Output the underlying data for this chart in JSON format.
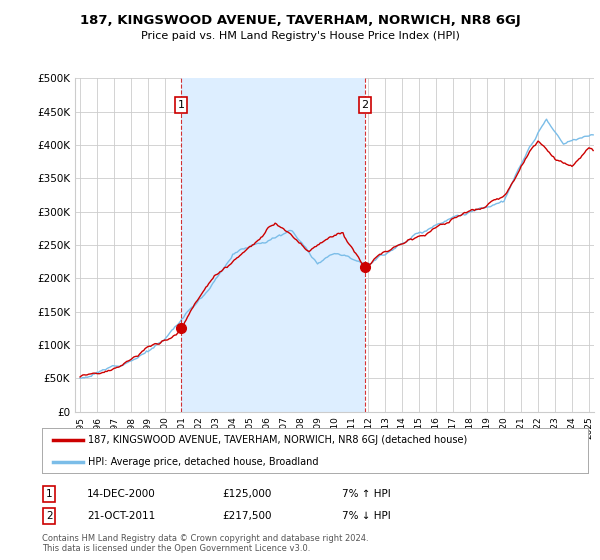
{
  "title": "187, KINGSWOOD AVENUE, TAVERHAM, NORWICH, NR8 6GJ",
  "subtitle": "Price paid vs. HM Land Registry's House Price Index (HPI)",
  "legend_line1": "187, KINGSWOOD AVENUE, TAVERHAM, NORWICH, NR8 6GJ (detached house)",
  "legend_line2": "HPI: Average price, detached house, Broadland",
  "annotation1_label": "1",
  "annotation1_date": "14-DEC-2000",
  "annotation1_price": "£125,000",
  "annotation1_hpi": "7% ↑ HPI",
  "annotation2_label": "2",
  "annotation2_date": "21-OCT-2011",
  "annotation2_price": "£217,500",
  "annotation2_hpi": "7% ↓ HPI",
  "footer": "Contains HM Land Registry data © Crown copyright and database right 2024.\nThis data is licensed under the Open Government Licence v3.0.",
  "hpi_color": "#7bbde8",
  "price_color": "#cc0000",
  "background_color": "#ffffff",
  "grid_color": "#cccccc",
  "shade_color": "#ddeeff",
  "ylim": [
    0,
    500000
  ],
  "yticks": [
    0,
    50000,
    100000,
    150000,
    200000,
    250000,
    300000,
    350000,
    400000,
    450000,
    500000
  ],
  "ytick_labels": [
    "£0",
    "£50K",
    "£100K",
    "£150K",
    "£200K",
    "£250K",
    "£300K",
    "£350K",
    "£400K",
    "£450K",
    "£500K"
  ],
  "sale1_x": 2000.96,
  "sale1_y": 125000,
  "sale2_x": 2011.8,
  "sale2_y": 217500,
  "vline1_x": 2000.96,
  "vline2_x": 2011.8,
  "xmin": 1994.7,
  "xmax": 2025.3
}
